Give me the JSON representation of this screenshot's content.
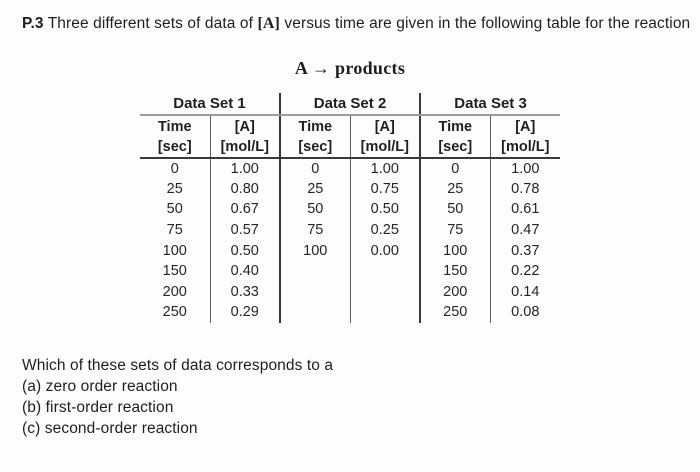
{
  "problem": {
    "label": "P.3",
    "line1_before": "Three different sets of data of",
    "bracket_a": "[A]",
    "line1_after": "versus time are given in the following table for the",
    "line2": "reaction",
    "equation": "A → products"
  },
  "table": {
    "groups": [
      {
        "caption": "Data Set 1",
        "time_header": "Time",
        "time_unit": "[sec]",
        "conc_header": "[A]",
        "conc_unit": "[mol/L]"
      },
      {
        "caption": "Data Set 2",
        "time_header": "Time",
        "time_unit": "[sec]",
        "conc_header": "[A]",
        "conc_unit": "[mol/L]"
      },
      {
        "caption": "Data Set 3",
        "time_header": "Time",
        "time_unit": "[sec]",
        "conc_header": "[A]",
        "conc_unit": "[mol/L]"
      }
    ],
    "rows": [
      [
        "0",
        "1.00",
        "0",
        "1.00",
        "0",
        "1.00"
      ],
      [
        "25",
        "0.80",
        "25",
        "0.75",
        "25",
        "0.78"
      ],
      [
        "50",
        "0.67",
        "50",
        "0.50",
        "50",
        "0.61"
      ],
      [
        "75",
        "0.57",
        "75",
        "0.25",
        "75",
        "0.47"
      ],
      [
        "100",
        "0.50",
        "100",
        "0.00",
        "100",
        "0.37"
      ],
      [
        "150",
        "0.40",
        "",
        "",
        "150",
        "0.22"
      ],
      [
        "200",
        "0.33",
        "",
        "",
        "200",
        "0.14"
      ],
      [
        "250",
        "0.29",
        "",
        "",
        "250",
        "0.08"
      ]
    ]
  },
  "question": {
    "intro": "Which of these sets of data corresponds to a",
    "options": [
      "(a) zero order reaction",
      "(b) first-order reaction",
      "(c) second-order reaction"
    ]
  },
  "colors": {
    "text": "#1f1f1f",
    "rule_thin": "#5c5c5c",
    "rule_caption": "#9a9a9a",
    "rule_thick": "#3a3a3a",
    "background": "#fdfdfd"
  }
}
